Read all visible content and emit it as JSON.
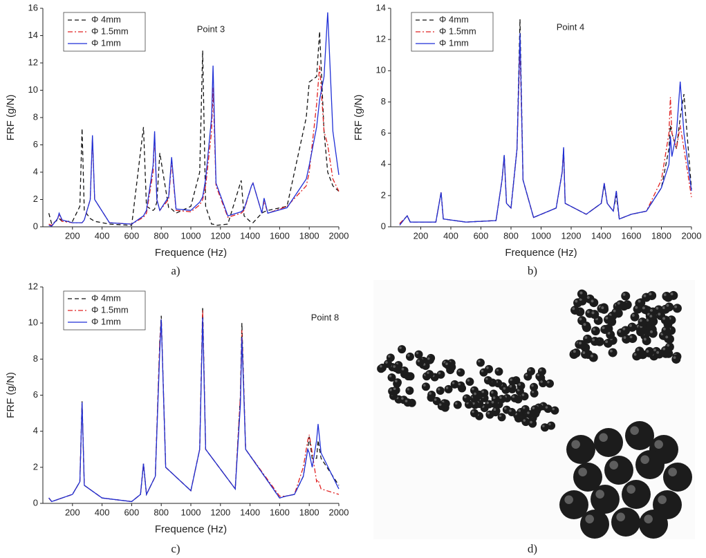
{
  "chart_data": [
    {
      "type": "line",
      "annotation": "Point 3",
      "caption": "a)",
      "x_label": "Frequence (Hz)",
      "y_label": "FRF (g/N)",
      "x": [
        40,
        60,
        100,
        110,
        130,
        200,
        250,
        265,
        280,
        320,
        335,
        350,
        450,
        600,
        680,
        700,
        745,
        755,
        770,
        790,
        850,
        870,
        900,
        1000,
        1060,
        1080,
        1100,
        1140,
        1150,
        1170,
        1250,
        1340,
        1360,
        1410,
        1420,
        1480,
        1495,
        1520,
        1650,
        1780,
        1800,
        1850,
        1870,
        1900,
        1925,
        1960,
        2000
      ],
      "series": [
        {
          "name": "Φ 4mm",
          "color": "#111111",
          "dash": "dashed",
          "values": [
            1.0,
            0.2,
            0.5,
            0.6,
            0.4,
            0.4,
            1.5,
            7.2,
            1.2,
            0.6,
            0.5,
            0.4,
            0.2,
            0.1,
            7.3,
            1.5,
            1.2,
            1.3,
            1.8,
            5.4,
            1.4,
            1.3,
            1.0,
            1.5,
            4,
            12.9,
            1.5,
            0.2,
            0.2,
            0.1,
            0.2,
            3.4,
            0.8,
            0.3,
            0.3,
            1.0,
            1.1,
            1.2,
            1.5,
            8,
            10.6,
            11,
            14.3,
            7,
            4,
            3,
            2.6
          ]
        },
        {
          "name": "Φ 1.5mm",
          "color": "#e02020",
          "dash": "dashdot",
          "values": [
            0.2,
            0.1,
            0.6,
            0.9,
            0.4,
            0.3,
            0.3,
            0.3,
            0.5,
            2,
            6.5,
            2,
            0.3,
            0.2,
            0.7,
            1.0,
            4,
            6.8,
            2,
            1.2,
            2,
            4.8,
            1.2,
            1.1,
            1.6,
            2,
            3,
            7,
            10.2,
            3,
            0.7,
            1.0,
            1.2,
            3.0,
            3.2,
            1.0,
            1.9,
            1.0,
            1.5,
            3,
            4,
            9,
            11.8,
            7,
            6,
            3.5,
            2.6
          ]
        },
        {
          "name": "Φ 1mm",
          "color": "#1f2fd6",
          "dash": "solid",
          "values": [
            0.1,
            0.05,
            0.6,
            1.0,
            0.5,
            0.3,
            0.3,
            0.3,
            0.5,
            2,
            6.7,
            2,
            0.3,
            0.2,
            0.8,
            1.2,
            4.5,
            7.0,
            2,
            1.2,
            2.2,
            5.1,
            1.3,
            1.2,
            1.8,
            2.2,
            3.5,
            8,
            11.8,
            3.2,
            0.8,
            1.1,
            1.3,
            3.0,
            3.2,
            1.0,
            2.1,
            1.0,
            1.4,
            3.5,
            4.5,
            7.3,
            9.3,
            11,
            15.7,
            7,
            3.8
          ]
        }
      ],
      "xlim": [
        0,
        2000
      ],
      "xticks": [
        200,
        400,
        600,
        800,
        1000,
        1200,
        1400,
        1600,
        1800,
        2000
      ],
      "ylim": [
        0,
        16
      ],
      "yticks": [
        0,
        2,
        4,
        6,
        8,
        10,
        12,
        14,
        16
      ],
      "legend": "upper-left"
    },
    {
      "type": "line",
      "annotation": "Point 4",
      "caption": "b)",
      "x_label": "Frequence (Hz)",
      "y_label": "FRF (g/N)",
      "x": [
        60,
        100,
        110,
        130,
        300,
        335,
        350,
        500,
        700,
        740,
        755,
        770,
        800,
        840,
        860,
        880,
        950,
        1100,
        1140,
        1150,
        1160,
        1300,
        1400,
        1420,
        1440,
        1480,
        1500,
        1520,
        1600,
        1700,
        1800,
        1850,
        1860,
        1870,
        1900,
        1925,
        1950,
        2000
      ],
      "series": [
        {
          "name": "Φ 4mm",
          "color": "#111111",
          "dash": "dashed",
          "values": [
            0.2,
            0.6,
            0.7,
            0.3,
            0.3,
            2.2,
            0.5,
            0.3,
            0.4,
            3,
            4.6,
            1.5,
            1.2,
            5,
            13.3,
            3,
            0.6,
            1.2,
            3.5,
            5.0,
            1.5,
            0.8,
            1.5,
            2.7,
            1.5,
            1.0,
            2.0,
            0.5,
            0.8,
            1.0,
            2.5,
            5,
            6.5,
            6,
            5,
            7,
            8.5,
            2.4
          ]
        },
        {
          "name": "Φ 1.5mm",
          "color": "#e02020",
          "dash": "dashdot",
          "values": [
            0.2,
            0.6,
            0.7,
            0.3,
            0.3,
            2.2,
            0.5,
            0.3,
            0.4,
            3,
            4.5,
            1.5,
            1.2,
            5,
            11.5,
            3,
            0.6,
            1.2,
            3.5,
            4.8,
            1.5,
            0.8,
            1.5,
            2.8,
            1.5,
            1.0,
            2.3,
            0.5,
            0.8,
            1.0,
            3,
            6,
            8.3,
            6,
            5,
            6.5,
            5,
            1.9
          ]
        },
        {
          "name": "Φ 1mm",
          "color": "#1f2fd6",
          "dash": "solid",
          "values": [
            0.1,
            0.6,
            0.7,
            0.3,
            0.3,
            2.2,
            0.5,
            0.3,
            0.4,
            3,
            4.6,
            1.5,
            1.2,
            5,
            12.4,
            3,
            0.6,
            1.2,
            3.5,
            5.1,
            1.5,
            0.8,
            1.5,
            2.8,
            1.5,
            1.0,
            2.3,
            0.5,
            0.8,
            1.0,
            2.5,
            4,
            5.8,
            4.5,
            6,
            9.3,
            6,
            2.3
          ]
        }
      ],
      "xlim": [
        0,
        2000
      ],
      "xticks": [
        200,
        400,
        600,
        800,
        1000,
        1200,
        1400,
        1600,
        1800,
        2000
      ],
      "ylim": [
        0,
        14
      ],
      "yticks": [
        0,
        2,
        4,
        6,
        8,
        10,
        12,
        14
      ],
      "legend": "upper-left"
    },
    {
      "type": "line",
      "annotation": "Point 8",
      "caption": "c)",
      "x_label": "Frequence (Hz)",
      "y_label": "FRF (g/N)",
      "x": [
        40,
        60,
        200,
        250,
        265,
        280,
        400,
        600,
        660,
        680,
        700,
        760,
        790,
        800,
        830,
        1000,
        1060,
        1080,
        1100,
        1300,
        1335,
        1345,
        1370,
        1600,
        1640,
        1700,
        1760,
        1790,
        1800,
        1820,
        1850,
        1860,
        1880,
        2000
      ],
      "series": [
        {
          "name": "Φ 4mm",
          "color": "#111111",
          "dash": "dashed",
          "values": [
            0.3,
            0.1,
            0.5,
            1.2,
            5.7,
            1.0,
            0.3,
            0.1,
            0.5,
            2.2,
            0.5,
            1.5,
            9,
            10.4,
            2,
            0.7,
            3,
            10.9,
            3,
            0.8,
            6,
            10,
            3,
            0.3,
            0.4,
            0.5,
            1.5,
            3,
            3.7,
            2.5,
            2.5,
            3.5,
            2.5,
            1.0
          ]
        },
        {
          "name": "Φ 1.5mm",
          "color": "#e02020",
          "dash": "dashdot",
          "values": [
            0.3,
            0.1,
            0.5,
            1.2,
            5.6,
            1.0,
            0.3,
            0.1,
            0.5,
            2.2,
            0.5,
            1.5,
            9,
            10.2,
            2,
            0.7,
            3,
            10.7,
            3,
            0.8,
            6,
            9.6,
            3,
            0.4,
            0.4,
            0.5,
            2,
            3.5,
            3.8,
            2.8,
            1.2,
            1.3,
            0.8,
            0.5
          ]
        },
        {
          "name": "Φ 1mm",
          "color": "#1f2fd6",
          "dash": "solid",
          "values": [
            0.3,
            0.1,
            0.5,
            1.2,
            5.6,
            1.0,
            0.3,
            0.1,
            0.5,
            2.2,
            0.5,
            1.5,
            8.5,
            10.2,
            2,
            0.7,
            3,
            10.3,
            3,
            0.8,
            5.5,
            9.2,
            3,
            0.3,
            0.4,
            0.5,
            1.5,
            3,
            2.8,
            2,
            3.5,
            4.4,
            2.8,
            0.8
          ]
        }
      ],
      "xlim": [
        0,
        2000
      ],
      "xticks": [
        200,
        400,
        600,
        800,
        1000,
        1200,
        1400,
        1600,
        1800,
        2000
      ],
      "ylim": [
        0,
        12
      ],
      "yticks": [
        0,
        2,
        4,
        6,
        8,
        10,
        12
      ],
      "legend": "upper-left"
    }
  ],
  "photo": {
    "caption": "d)"
  }
}
